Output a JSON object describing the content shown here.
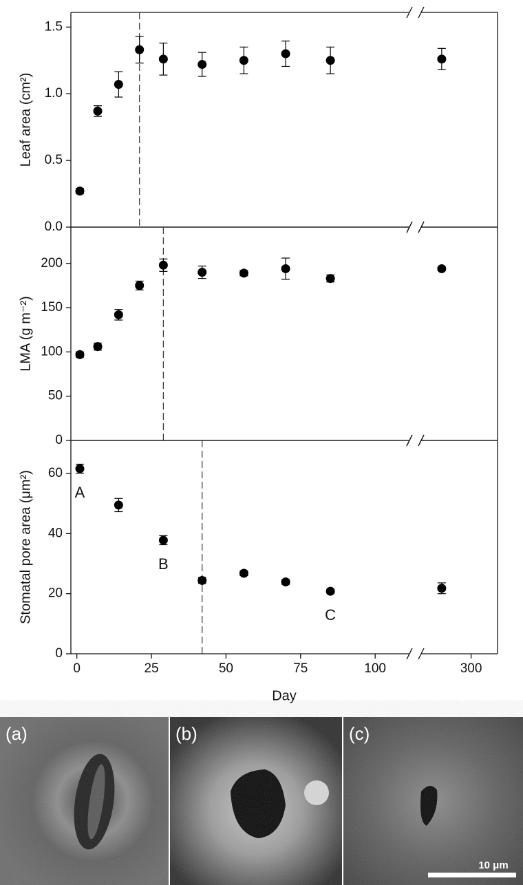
{
  "chart_data": [
    {
      "type": "scatter",
      "y_label": "Leaf area (cm²)",
      "x": [
        1,
        7,
        14,
        21,
        29,
        42,
        56,
        70,
        85,
        290
      ],
      "values": [
        0.27,
        0.87,
        1.07,
        1.33,
        1.26,
        1.22,
        1.25,
        1.3,
        1.25,
        1.26
      ],
      "errors": [
        0.02,
        0.04,
        0.095,
        0.1,
        0.12,
        0.09,
        0.1,
        0.095,
        0.1,
        0.08
      ],
      "color": "#000000",
      "vline": 21,
      "xlim": [
        -2,
        111.5
      ],
      "x2lim": [
        283,
        309
      ],
      "ylim": [
        0,
        1.61
      ],
      "yticks": [
        {
          "value": 0,
          "label": "0.0"
        },
        0.5,
        {
          "value": 1,
          "label": "1.0"
        },
        1.5
      ]
    },
    {
      "type": "scatter",
      "y_label": "LMA (g m⁻²)",
      "x": [
        1,
        7,
        14,
        21,
        29,
        42,
        56,
        70,
        85,
        290
      ],
      "values": [
        97,
        106,
        142,
        175,
        198,
        190,
        189,
        194,
        183,
        194
      ],
      "errors": [
        3,
        4,
        6,
        5,
        7,
        7,
        3,
        12,
        4,
        2
      ],
      "color": "#000000",
      "vline": 29,
      "xlim": [
        -2,
        111.5
      ],
      "x2lim": [
        283,
        309
      ],
      "ylim": [
        0,
        241
      ],
      "yticks": [
        0,
        50,
        100,
        150,
        200
      ]
    },
    {
      "type": "scatter",
      "y_label": "Stomatal pore area (μm²)",
      "x_label": "Day",
      "x": [
        1,
        14,
        29,
        42,
        56,
        70,
        85,
        290
      ],
      "values": [
        61.6,
        49.5,
        37.8,
        24.4,
        26.8,
        23.9,
        20.8,
        21.8
      ],
      "errors": [
        1.5,
        2.2,
        1.5,
        1,
        0.8,
        0.8,
        0.6,
        1.8
      ],
      "point_labels": [
        "A",
        null,
        "B",
        null,
        null,
        null,
        "C",
        null
      ],
      "color": "#000000",
      "vline": 42,
      "xlim": [
        -2,
        111.5
      ],
      "x2lim": [
        283,
        309
      ],
      "xticks": [
        0,
        25,
        50,
        75,
        100
      ],
      "x2ticks": [
        300
      ],
      "ylim": [
        0,
        71
      ],
      "yticks": [
        0,
        20,
        40,
        60
      ]
    }
  ],
  "images": [
    {
      "label": "(a)"
    },
    {
      "label": "(b)"
    },
    {
      "label": "(c)"
    }
  ],
  "scale_bar": "10 μm"
}
